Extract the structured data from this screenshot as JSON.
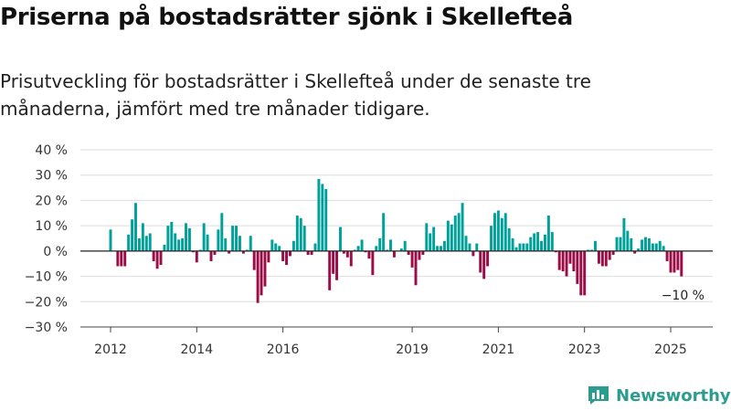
{
  "page": {
    "title": "Priserna på bostadsrätter sjönk i Skellefteå",
    "subtitle": "Prisutveckling för bostadsrätter i Skellefteå under de senaste tre månaderna, jämfört med tre månader tidigare.",
    "brand": "Newsworthy"
  },
  "chart_data": {
    "type": "bar",
    "title": "Priserna på bostadsrätter sjönk i Skellefteå",
    "subtitle": "Prisutveckling för bostadsrätter i Skellefteå under de senaste tre månaderna, jämfört med tre månader tidigare.",
    "xlabel": "",
    "ylabel": "",
    "ylim": [
      -30,
      40
    ],
    "yticks": [
      40,
      30,
      20,
      10,
      0,
      -10,
      -20,
      -30
    ],
    "ytick_labels": [
      "40 %",
      "30 %",
      "20 %",
      "10 %",
      "0 %",
      "−10 %",
      "−20 %",
      "−30 %"
    ],
    "xticks": [
      2012,
      2014,
      2016,
      2019,
      2021,
      2023,
      2025
    ],
    "xtick_labels": [
      "2012",
      "2014",
      "2016",
      "2019",
      "2021",
      "2023",
      "2025"
    ],
    "grid": true,
    "colors": {
      "positive": "#00a19a",
      "negative": "#9b0d47"
    },
    "last_value_label": "−10 %",
    "series": [
      {
        "values": [
          {
            "x": "2012-01",
            "y": 8.5
          },
          {
            "x": "2012-03",
            "y": -6
          },
          {
            "x": "2012-04",
            "y": -6
          },
          {
            "x": "2012-05",
            "y": -6
          },
          {
            "x": "2012-06",
            "y": 6.5
          },
          {
            "x": "2012-07",
            "y": 12.5
          },
          {
            "x": "2012-08",
            "y": 19
          },
          {
            "x": "2012-09",
            "y": 5
          },
          {
            "x": "2012-10",
            "y": 11
          },
          {
            "x": "2012-11",
            "y": 6
          },
          {
            "x": "2012-12",
            "y": 7
          },
          {
            "x": "2013-01",
            "y": -4
          },
          {
            "x": "2013-02",
            "y": -7
          },
          {
            "x": "2013-03",
            "y": -5.5
          },
          {
            "x": "2013-04",
            "y": 2.5
          },
          {
            "x": "2013-05",
            "y": 10
          },
          {
            "x": "2013-06",
            "y": 11.5
          },
          {
            "x": "2013-07",
            "y": 7
          },
          {
            "x": "2013-08",
            "y": 4.5
          },
          {
            "x": "2013-09",
            "y": 5
          },
          {
            "x": "2013-10",
            "y": 11
          },
          {
            "x": "2013-11",
            "y": 9
          },
          {
            "x": "2013-12",
            "y": -0.5
          },
          {
            "x": "2014-01",
            "y": -4.5
          },
          {
            "x": "2014-02",
            "y": 0.5
          },
          {
            "x": "2014-03",
            "y": 11
          },
          {
            "x": "2014-04",
            "y": 6.5
          },
          {
            "x": "2014-05",
            "y": -4
          },
          {
            "x": "2014-06",
            "y": -1.5
          },
          {
            "x": "2014-07",
            "y": 8.5
          },
          {
            "x": "2014-08",
            "y": 15
          },
          {
            "x": "2014-09",
            "y": 5
          },
          {
            "x": "2014-10",
            "y": -1
          },
          {
            "x": "2014-11",
            "y": 10
          },
          {
            "x": "2014-12",
            "y": 10
          },
          {
            "x": "2015-01",
            "y": 6
          },
          {
            "x": "2015-02",
            "y": -1
          },
          {
            "x": "2015-03",
            "y": 0.5
          },
          {
            "x": "2015-04",
            "y": 6
          },
          {
            "x": "2015-05",
            "y": -7.5
          },
          {
            "x": "2015-06",
            "y": -20.5
          },
          {
            "x": "2015-07",
            "y": -17.5
          },
          {
            "x": "2015-08",
            "y": -14
          },
          {
            "x": "2015-09",
            "y": -4.5
          },
          {
            "x": "2015-10",
            "y": 4.5
          },
          {
            "x": "2015-11",
            "y": 3
          },
          {
            "x": "2015-12",
            "y": 2
          },
          {
            "x": "2016-01",
            "y": -4
          },
          {
            "x": "2016-02",
            "y": -5.5
          },
          {
            "x": "2016-03",
            "y": -2
          },
          {
            "x": "2016-04",
            "y": 4
          },
          {
            "x": "2016-05",
            "y": 14
          },
          {
            "x": "2016-06",
            "y": 13
          },
          {
            "x": "2016-07",
            "y": 10
          },
          {
            "x": "2016-08",
            "y": -1.5
          },
          {
            "x": "2016-09",
            "y": -1.5
          },
          {
            "x": "2016-10",
            "y": 3
          },
          {
            "x": "2016-11",
            "y": 28.5
          },
          {
            "x": "2016-12",
            "y": 26.5
          },
          {
            "x": "2017-01",
            "y": 24.5
          },
          {
            "x": "2017-02",
            "y": -15.5
          },
          {
            "x": "2017-03",
            "y": -9
          },
          {
            "x": "2017-04",
            "y": -11.5
          },
          {
            "x": "2017-05",
            "y": 9.5
          },
          {
            "x": "2017-06",
            "y": -1
          },
          {
            "x": "2017-07",
            "y": -2.5
          },
          {
            "x": "2017-08",
            "y": -6
          },
          {
            "x": "2017-09",
            "y": 0.5
          },
          {
            "x": "2017-10",
            "y": 2
          },
          {
            "x": "2017-11",
            "y": 4.5
          },
          {
            "x": "2017-12",
            "y": -0.5
          },
          {
            "x": "2018-01",
            "y": -3
          },
          {
            "x": "2018-02",
            "y": -9.5
          },
          {
            "x": "2018-03",
            "y": 2
          },
          {
            "x": "2018-04",
            "y": 5
          },
          {
            "x": "2018-05",
            "y": 15
          },
          {
            "x": "2018-06",
            "y": 0.5
          },
          {
            "x": "2018-07",
            "y": 4.5
          },
          {
            "x": "2018-08",
            "y": -2.5
          },
          {
            "x": "2018-10",
            "y": 1
          },
          {
            "x": "2018-11",
            "y": 4
          },
          {
            "x": "2018-12",
            "y": -1.5
          },
          {
            "x": "2019-01",
            "y": -6.5
          },
          {
            "x": "2019-02",
            "y": -13.5
          },
          {
            "x": "2019-03",
            "y": -3.5
          },
          {
            "x": "2019-04",
            "y": -1.5
          },
          {
            "x": "2019-05",
            "y": 11
          },
          {
            "x": "2019-06",
            "y": 7
          },
          {
            "x": "2019-07",
            "y": 9.5
          },
          {
            "x": "2019-08",
            "y": 2
          },
          {
            "x": "2019-09",
            "y": 2
          },
          {
            "x": "2019-10",
            "y": 4
          },
          {
            "x": "2019-11",
            "y": 12
          },
          {
            "x": "2019-12",
            "y": 10.5
          },
          {
            "x": "2020-01",
            "y": 14
          },
          {
            "x": "2020-02",
            "y": 15
          },
          {
            "x": "2020-03",
            "y": 19
          },
          {
            "x": "2020-04",
            "y": 6
          },
          {
            "x": "2020-05",
            "y": 3
          },
          {
            "x": "2020-06",
            "y": -2
          },
          {
            "x": "2020-07",
            "y": 3
          },
          {
            "x": "2020-08",
            "y": -8.5
          },
          {
            "x": "2020-09",
            "y": -11
          },
          {
            "x": "2020-10",
            "y": -6
          },
          {
            "x": "2020-11",
            "y": 10
          },
          {
            "x": "2020-12",
            "y": 15
          },
          {
            "x": "2021-01",
            "y": 16
          },
          {
            "x": "2021-02",
            "y": 13
          },
          {
            "x": "2021-03",
            "y": 15
          },
          {
            "x": "2021-04",
            "y": 9
          },
          {
            "x": "2021-05",
            "y": 5
          },
          {
            "x": "2021-06",
            "y": 1.5
          },
          {
            "x": "2021-07",
            "y": 3
          },
          {
            "x": "2021-08",
            "y": 3
          },
          {
            "x": "2021-09",
            "y": 3
          },
          {
            "x": "2021-10",
            "y": 5.5
          },
          {
            "x": "2021-11",
            "y": 7
          },
          {
            "x": "2021-12",
            "y": 7.5
          },
          {
            "x": "2022-01",
            "y": 4
          },
          {
            "x": "2022-02",
            "y": 6.5
          },
          {
            "x": "2022-03",
            "y": 14
          },
          {
            "x": "2022-04",
            "y": 7.5
          },
          {
            "x": "2022-05",
            "y": -0.5
          },
          {
            "x": "2022-06",
            "y": -7.5
          },
          {
            "x": "2022-07",
            "y": -8
          },
          {
            "x": "2022-08",
            "y": -10
          },
          {
            "x": "2022-09",
            "y": -5
          },
          {
            "x": "2022-10",
            "y": -8
          },
          {
            "x": "2022-11",
            "y": -13
          },
          {
            "x": "2022-12",
            "y": -17.5
          },
          {
            "x": "2023-01",
            "y": -17.5
          },
          {
            "x": "2023-02",
            "y": 0.5
          },
          {
            "x": "2023-03",
            "y": 0.5
          },
          {
            "x": "2023-04",
            "y": 4
          },
          {
            "x": "2023-05",
            "y": -5
          },
          {
            "x": "2023-06",
            "y": -6
          },
          {
            "x": "2023-07",
            "y": -6
          },
          {
            "x": "2023-08",
            "y": -3.5
          },
          {
            "x": "2023-09",
            "y": -1.5
          },
          {
            "x": "2023-10",
            "y": 5.5
          },
          {
            "x": "2023-11",
            "y": 5.5
          },
          {
            "x": "2023-12",
            "y": 13
          },
          {
            "x": "2024-01",
            "y": 8
          },
          {
            "x": "2024-02",
            "y": 5
          },
          {
            "x": "2024-03",
            "y": -1
          },
          {
            "x": "2024-04",
            "y": 1
          },
          {
            "x": "2024-05",
            "y": 4.5
          },
          {
            "x": "2024-06",
            "y": 5.5
          },
          {
            "x": "2024-07",
            "y": 5
          },
          {
            "x": "2024-08",
            "y": 3
          },
          {
            "x": "2024-09",
            "y": 3
          },
          {
            "x": "2024-10",
            "y": 4
          },
          {
            "x": "2024-11",
            "y": 2
          },
          {
            "x": "2024-12",
            "y": -4
          },
          {
            "x": "2025-01",
            "y": -8.5
          },
          {
            "x": "2025-02",
            "y": -8.5
          },
          {
            "x": "2025-03",
            "y": -7.5
          },
          {
            "x": "2025-04",
            "y": -10
          }
        ]
      }
    ]
  }
}
